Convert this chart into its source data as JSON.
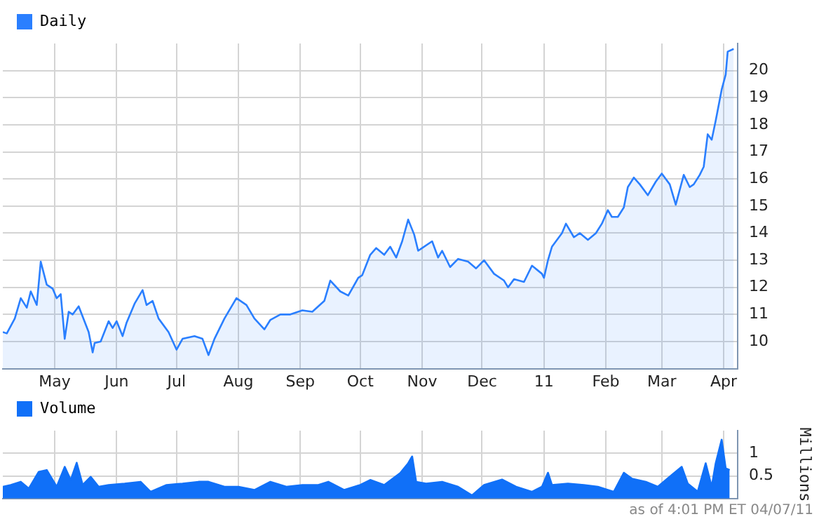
{
  "chart_data": [
    {
      "type": "area",
      "legend": "top left",
      "grid": true,
      "xlim": [
        "2010-04-05",
        "2011-04-08"
      ],
      "xticks": [
        {
          "value": "2010-05-01",
          "label": "May"
        },
        {
          "value": "2010-06-01",
          "label": "Jun"
        },
        {
          "value": "2010-07-01",
          "label": "Jul"
        },
        {
          "value": "2010-08-01",
          "label": "Aug"
        },
        {
          "value": "2010-09-01",
          "label": "Sep"
        },
        {
          "value": "2010-10-01",
          "label": "Oct"
        },
        {
          "value": "2010-11-01",
          "label": "Nov"
        },
        {
          "value": "2010-12-01",
          "label": "Dec"
        },
        {
          "value": "2011-01-01",
          "label": "11"
        },
        {
          "value": "2011-02-01",
          "label": "Feb"
        },
        {
          "value": "2011-03-01",
          "label": "Mar"
        },
        {
          "value": "2011-04-01",
          "label": "Apr"
        }
      ],
      "ylim": [
        9,
        21
      ],
      "yticks": [
        10,
        11,
        12,
        13,
        14,
        15,
        16,
        17,
        18,
        19,
        20
      ],
      "x": [
        "2010-04-05",
        "2010-04-07",
        "2010-04-11",
        "2010-04-14",
        "2010-04-17",
        "2010-04-19",
        "2010-04-22",
        "2010-04-24",
        "2010-04-27",
        "2010-04-30",
        "2010-05-02",
        "2010-05-04",
        "2010-05-06",
        "2010-05-08",
        "2010-05-10",
        "2010-05-13",
        "2010-05-18",
        "2010-05-20",
        "2010-05-21",
        "2010-05-24",
        "2010-05-28",
        "2010-05-30",
        "2010-06-01",
        "2010-06-04",
        "2010-06-06",
        "2010-06-10",
        "2010-06-14",
        "2010-06-16",
        "2010-06-19",
        "2010-06-22",
        "2010-06-27",
        "2010-07-01",
        "2010-07-04",
        "2010-07-10",
        "2010-07-14",
        "2010-07-17",
        "2010-07-20",
        "2010-07-25",
        "2010-07-31",
        "2010-08-05",
        "2010-08-09",
        "2010-08-14",
        "2010-08-17",
        "2010-08-22",
        "2010-08-27",
        "2010-09-02",
        "2010-09-07",
        "2010-09-13",
        "2010-09-16",
        "2010-09-21",
        "2010-09-25",
        "2010-09-30",
        "2010-10-02",
        "2010-10-06",
        "2010-10-09",
        "2010-10-13",
        "2010-10-16",
        "2010-10-19",
        "2010-10-22",
        "2010-10-25",
        "2010-10-28",
        "2010-10-30",
        "2010-11-01",
        "2010-11-06",
        "2010-11-09",
        "2010-11-11",
        "2010-11-15",
        "2010-11-19",
        "2010-11-24",
        "2010-11-28",
        "2010-12-02",
        "2010-12-07",
        "2010-12-12",
        "2010-12-14",
        "2010-12-17",
        "2010-12-22",
        "2010-12-26",
        "2010-12-31",
        "2011-01-01",
        "2011-01-03",
        "2011-01-05",
        "2011-01-10",
        "2011-01-12",
        "2011-01-16",
        "2011-01-19",
        "2011-01-23",
        "2011-01-27",
        "2011-01-30",
        "2011-02-02",
        "2011-02-04",
        "2011-02-07",
        "2011-02-10",
        "2011-02-12",
        "2011-02-15",
        "2011-02-18",
        "2011-02-22",
        "2011-02-26",
        "2011-03-01",
        "2011-03-05",
        "2011-03-08",
        "2011-03-12",
        "2011-03-15",
        "2011-03-17",
        "2011-03-20",
        "2011-03-22",
        "2011-03-24",
        "2011-03-26",
        "2011-03-28",
        "2011-03-31",
        "2011-04-02",
        "2011-04-03",
        "2011-04-06"
      ],
      "series": [
        {
          "name": "Daily",
          "color": "#2a7fff",
          "values": [
            10.35,
            10.3,
            10.85,
            11.6,
            11.25,
            11.85,
            11.35,
            12.95,
            12.1,
            11.95,
            11.6,
            11.75,
            10.1,
            11.1,
            11.0,
            11.3,
            10.35,
            9.6,
            9.95,
            10.0,
            10.75,
            10.5,
            10.75,
            10.2,
            10.7,
            11.4,
            11.9,
            11.35,
            11.5,
            10.85,
            10.35,
            9.7,
            10.1,
            10.2,
            10.1,
            9.5,
            10.1,
            10.85,
            11.6,
            11.35,
            10.85,
            10.45,
            10.8,
            11.0,
            11.0,
            11.15,
            11.1,
            11.5,
            12.25,
            11.85,
            11.7,
            12.35,
            12.45,
            13.2,
            13.45,
            13.2,
            13.5,
            13.1,
            13.7,
            14.5,
            13.95,
            13.35,
            13.45,
            13.7,
            13.1,
            13.35,
            12.75,
            13.05,
            12.95,
            12.7,
            13.0,
            12.5,
            12.25,
            12.0,
            12.3,
            12.2,
            12.8,
            12.5,
            12.35,
            13.0,
            13.5,
            14.0,
            14.35,
            13.85,
            14.0,
            13.75,
            14.0,
            14.35,
            14.85,
            14.6,
            14.6,
            14.95,
            15.7,
            16.05,
            15.8,
            15.4,
            15.9,
            16.2,
            15.8,
            15.05,
            16.15,
            15.7,
            15.8,
            16.15,
            16.45,
            17.65,
            17.45,
            18.15,
            19.3,
            19.85,
            20.7,
            20.8
          ]
        }
      ]
    },
    {
      "type": "area",
      "legend": "top left",
      "grid": true,
      "tick_labels": "y",
      "ylabel": "Millions",
      "annotations": [
        "as of 4:01 PM ET 04/07/11"
      ],
      "xlim": [
        "2010-04-05",
        "2011-04-08"
      ],
      "xticks": [
        {
          "value": "2010-05-01",
          "label": null
        },
        {
          "value": "2010-06-01",
          "label": null
        },
        {
          "value": "2010-07-01",
          "label": null
        },
        {
          "value": "2010-08-01",
          "label": null
        },
        {
          "value": "2010-09-01",
          "label": null
        },
        {
          "value": "2010-10-01",
          "label": null
        },
        {
          "value": "2010-11-01",
          "label": null
        },
        {
          "value": "2010-12-01",
          "label": null
        },
        {
          "value": "2011-01-01",
          "label": null
        },
        {
          "value": "2011-02-01",
          "label": null
        },
        {
          "value": "2011-03-01",
          "label": null
        },
        {
          "value": "2011-04-01",
          "label": null
        }
      ],
      "ylim": [
        0,
        1.5
      ],
      "yticks": [
        0.5,
        1
      ],
      "x": [
        "2010-04-05",
        "2010-04-09",
        "2010-04-14",
        "2010-04-18",
        "2010-04-23",
        "2010-04-27",
        "2010-04-30",
        "2010-05-02",
        "2010-05-06",
        "2010-05-09",
        "2010-05-12",
        "2010-05-15",
        "2010-05-19",
        "2010-05-23",
        "2010-05-28",
        "2010-06-05",
        "2010-06-13",
        "2010-06-18",
        "2010-06-26",
        "2010-07-04",
        "2010-07-12",
        "2010-07-17",
        "2010-07-25",
        "2010-08-01",
        "2010-08-09",
        "2010-08-17",
        "2010-08-25",
        "2010-09-02",
        "2010-09-10",
        "2010-09-15",
        "2010-09-23",
        "2010-10-01",
        "2010-10-06",
        "2010-10-13",
        "2010-10-21",
        "2010-10-25",
        "2010-10-27",
        "2010-10-29",
        "2010-11-03",
        "2010-11-11",
        "2010-11-19",
        "2010-11-26",
        "2010-12-02",
        "2010-12-11",
        "2010-12-18",
        "2010-12-26",
        "2010-12-31",
        "2011-01-03",
        "2011-01-05",
        "2011-01-13",
        "2011-01-21",
        "2011-01-28",
        "2011-02-05",
        "2011-02-10",
        "2011-02-14",
        "2011-02-21",
        "2011-02-27",
        "2011-03-06",
        "2011-03-11",
        "2011-03-14",
        "2011-03-19",
        "2011-03-23",
        "2011-03-26",
        "2011-03-28",
        "2011-03-31",
        "2011-04-02",
        "2011-04-04"
      ],
      "series": [
        {
          "name": "Volume",
          "color": "#1070f8",
          "values": [
            0.26,
            0.3,
            0.37,
            0.22,
            0.59,
            0.63,
            0.41,
            0.26,
            0.7,
            0.41,
            0.79,
            0.3,
            0.48,
            0.26,
            0.3,
            0.33,
            0.37,
            0.15,
            0.3,
            0.33,
            0.37,
            0.37,
            0.26,
            0.26,
            0.19,
            0.37,
            0.26,
            0.3,
            0.3,
            0.37,
            0.19,
            0.3,
            0.41,
            0.3,
            0.56,
            0.78,
            0.93,
            0.37,
            0.33,
            0.37,
            0.26,
            0.07,
            0.3,
            0.42,
            0.26,
            0.15,
            0.26,
            0.57,
            0.3,
            0.33,
            0.3,
            0.26,
            0.15,
            0.57,
            0.44,
            0.37,
            0.26,
            0.52,
            0.7,
            0.33,
            0.15,
            0.78,
            0.26,
            0.78,
            1.3,
            0.67,
            0.63
          ]
        }
      ]
    }
  ]
}
